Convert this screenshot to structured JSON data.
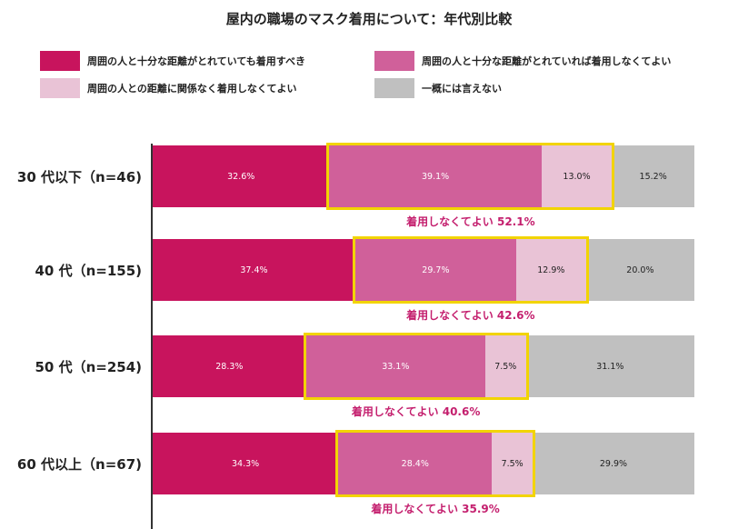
{
  "page": {
    "title": "屋内の職場のマスク着用について：年代別比較"
  },
  "legend": [
    {
      "label": "周囲の人と十分な距離がとれていても着用すべき",
      "color": "#c8145d"
    },
    {
      "label": "周囲の人と十分な距離がとれていれば着用しなくてよい",
      "color": "#d0609a"
    },
    {
      "label": "周囲の人との距離に関係なく着用しなくてよい",
      "color": "#e9c3d6"
    },
    {
      "label": "一概には言えない",
      "color": "#c0c0c0"
    }
  ],
  "colors": {
    "highlight": "#f2d400",
    "annotation": "#c41f6e"
  },
  "chart_data": {
    "type": "bar",
    "orientation": "horizontal",
    "stacked": true,
    "title": "屋内の職場のマスク着用について：年代別比較",
    "categories": [
      "30 代以下（n=46)",
      "40 代（n=155)",
      "50 代（n=254)",
      "60 代以上（n=67)"
    ],
    "series": [
      {
        "name": "周囲の人と十分な距離がとれていても着用すべき",
        "values": [
          32.6,
          37.4,
          28.3,
          34.3
        ],
        "labels": [
          "32.6%",
          "37.4%",
          "28.3%",
          "34.3%"
        ]
      },
      {
        "name": "周囲の人と十分な距離がとれていれば着用しなくてよい",
        "values": [
          39.1,
          29.7,
          33.1,
          28.4
        ],
        "labels": [
          "39.1%",
          "29.7%",
          "33.1%",
          "28.4%"
        ]
      },
      {
        "name": "周囲の人との距離に関係なく着用しなくてよい",
        "values": [
          13.0,
          12.9,
          7.5,
          7.5
        ],
        "labels": [
          "13.0%",
          "12.9%",
          "7.5%",
          "7.5%"
        ]
      },
      {
        "name": "一概には言えない",
        "values": [
          15.2,
          20.0,
          31.1,
          29.9
        ],
        "labels": [
          "15.2%",
          "20.0%",
          "31.1%",
          "29.9%"
        ]
      }
    ],
    "highlighted_series": [
      1,
      2
    ],
    "annotations": [
      "着用しなくてよい 52.1%",
      "着用しなくてよい 42.6%",
      "着用しなくてよい 40.6%",
      "着用しなくてよい 35.9%"
    ],
    "xlim": [
      0,
      100
    ],
    "unit": "%"
  }
}
